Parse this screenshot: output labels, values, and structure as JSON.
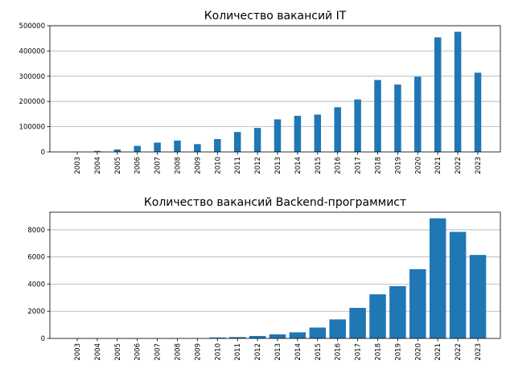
{
  "chart_data": [
    {
      "type": "bar",
      "title": "Количество вакансий IT",
      "xlabel": "",
      "ylabel": "",
      "categories": [
        "2003",
        "2004",
        "2005",
        "2006",
        "2007",
        "2008",
        "2009",
        "2010",
        "2011",
        "2012",
        "2013",
        "2014",
        "2015",
        "2016",
        "2017",
        "2018",
        "2019",
        "2020",
        "2021",
        "2022",
        "2023"
      ],
      "values": [
        1000,
        4000,
        10000,
        24000,
        37000,
        45000,
        31000,
        51000,
        79000,
        95000,
        129000,
        143000,
        148000,
        177000,
        208000,
        285000,
        267000,
        298000,
        454000,
        476000,
        314000
      ],
      "yticks": [
        "0",
        "100000",
        "200000",
        "300000",
        "400000",
        "500000"
      ],
      "ylim": [
        0,
        500000
      ],
      "grid": "y",
      "color": "#1f77b4"
    },
    {
      "type": "bar",
      "title": "Количество вакансий Backend-программист",
      "xlabel": "",
      "ylabel": "",
      "categories": [
        "2003",
        "2004",
        "2005",
        "2006",
        "2007",
        "2008",
        "2009",
        "2010",
        "2011",
        "2012",
        "2013",
        "2014",
        "2015",
        "2016",
        "2017",
        "2018",
        "2019",
        "2020",
        "2021",
        "2022",
        "2023"
      ],
      "values": [
        5,
        5,
        5,
        5,
        5,
        10,
        15,
        70,
        100,
        180,
        300,
        450,
        800,
        1400,
        2250,
        3250,
        3850,
        5100,
        8850,
        7850,
        6150
      ],
      "yticks": [
        "0",
        "2000",
        "4000",
        "6000",
        "8000"
      ],
      "ylim": [
        0,
        9300
      ],
      "grid": "y",
      "color": "#1f77b4"
    }
  ]
}
